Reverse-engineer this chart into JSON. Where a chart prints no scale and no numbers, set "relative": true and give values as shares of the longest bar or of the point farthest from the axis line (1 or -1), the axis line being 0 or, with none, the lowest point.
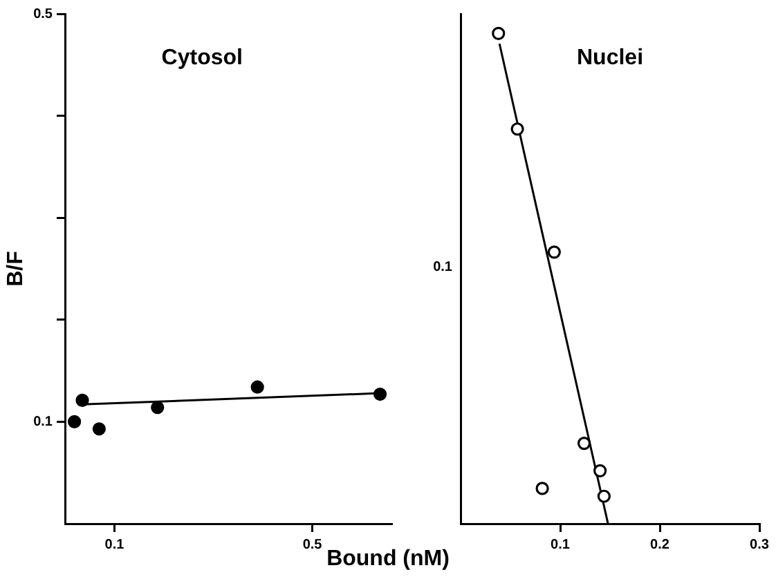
{
  "chart_data": [
    {
      "type": "scatter",
      "title": "Cytosol",
      "ylabel": "B/F",
      "xlabel": "Bound (nM)",
      "xlim": [
        0,
        0.66
      ],
      "ylim": [
        0,
        0.5
      ],
      "xticks": [
        0.1,
        0.5
      ],
      "yticks": [
        0.1,
        {
          "value": 0.2,
          "label": null
        },
        {
          "value": 0.3,
          "label": null
        },
        {
          "value": 0.4,
          "label": null
        },
        0.5
      ],
      "grid": false,
      "legend": false,
      "marker": "circle",
      "series": [
        {
          "color": "#000000",
          "x": [
            0.019,
            0.035,
            0.069,
            0.187,
            0.389,
            0.637
          ],
          "values": [
            0.1,
            0.121,
            0.093,
            0.114,
            0.134,
            0.127
          ]
        },
        {
          "type": "line",
          "color": "#000000",
          "marker": "none",
          "x": [
            0.035,
            0.637
          ],
          "values": [
            0.117,
            0.128
          ]
        }
      ]
    },
    {
      "type": "scatter",
      "title": "Nuclei",
      "relative": true,
      "xlim": [
        0,
        0.3
      ],
      "xticks": [
        0.1,
        0.2,
        0.3
      ],
      "grid": false,
      "legend": false,
      "marker": "circle",
      "annotations": [
        "0.1"
      ],
      "series": [
        {
          "color": "#000000",
          "x": [
            0.038,
            0.057,
            0.094,
            0.124,
            0.14,
            0.144,
            0.082
          ],
          "values": [
            1,
            0.805,
            0.554,
            0.164,
            0.108,
            0.056,
            0.072
          ]
        },
        {
          "type": "line",
          "color": "#000000",
          "marker": "none",
          "x": [
            0.039,
            0.148
          ],
          "values": [
            0.979,
            0
          ]
        }
      ]
    }
  ]
}
